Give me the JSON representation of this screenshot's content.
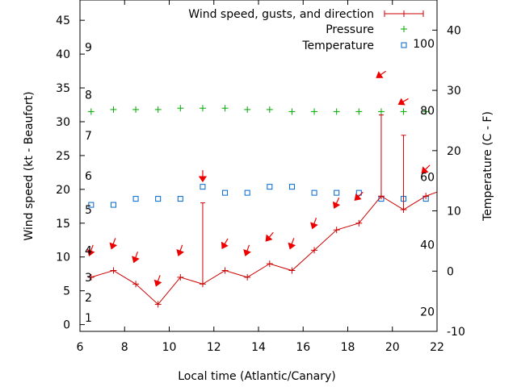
{
  "chart_data": {
    "type": "line",
    "xlabel": "Local time (Atlantic/Canary)",
    "ylabel": "Wind speed (kt - Beaufort)",
    "y2label": "Temperature (C - F)",
    "xlim": [
      6,
      22
    ],
    "ylim": [
      -1,
      48
    ],
    "y2lim": [
      -10,
      45
    ],
    "x_ticks": [
      6,
      8,
      10,
      12,
      14,
      16,
      18,
      20,
      22
    ],
    "y_ticks": [
      0,
      5,
      10,
      15,
      20,
      25,
      30,
      35,
      40,
      45
    ],
    "y2_ticks": [
      -10,
      0,
      10,
      20,
      30,
      40
    ],
    "beaufort_labels": [
      {
        "label": "1",
        "kt": 1
      },
      {
        "label": "2",
        "kt": 4
      },
      {
        "label": "3",
        "kt": 7
      },
      {
        "label": "4",
        "kt": 11
      },
      {
        "label": "5",
        "kt": 17
      },
      {
        "label": "6",
        "kt": 22
      },
      {
        "label": "7",
        "kt": 28
      },
      {
        "label": "8",
        "kt": 34
      },
      {
        "label": "9",
        "kt": 41
      }
    ],
    "fahrenheit_labels": [
      {
        "label": "20",
        "c": -6.7
      },
      {
        "label": "40",
        "c": 4.4
      },
      {
        "label": "60",
        "c": 15.6
      },
      {
        "label": "80",
        "c": 26.7
      },
      {
        "label": "100",
        "c": 37.8
      }
    ],
    "legend_position": "top-right",
    "legend": {
      "wind": "Wind speed, gusts, and direction",
      "pressure": "Pressure",
      "temperature": "Temperature"
    },
    "x": [
      6.5,
      7.5,
      8.5,
      9.5,
      10.5,
      11.5,
      12.5,
      13.5,
      14.5,
      15.5,
      16.5,
      17.5,
      18.5,
      19.5,
      20.5,
      21.5
    ],
    "wind_kt": [
      7,
      8,
      6,
      3,
      7,
      6,
      8,
      7,
      9,
      8,
      11,
      14,
      15,
      19,
      17,
      19
    ],
    "gust_kt": [
      null,
      null,
      null,
      null,
      null,
      18,
      null,
      null,
      null,
      null,
      null,
      null,
      null,
      31,
      28,
      null
    ],
    "wind_from_deg": [
      20,
      20,
      20,
      20,
      20,
      0,
      30,
      20,
      40,
      20,
      20,
      25,
      45,
      55,
      60,
      45
    ],
    "arrow_kt": [
      11,
      12,
      10,
      6.5,
      11,
      22,
      12,
      11,
      13,
      12,
      15,
      18,
      19,
      37,
      33,
      23
    ],
    "pressure_kt": [
      31.5,
      31.8,
      31.8,
      31.8,
      32,
      32,
      32,
      31.8,
      31.8,
      31.5,
      31.5,
      31.5,
      31.5,
      31.5,
      31.5,
      31.5
    ],
    "temperature_c": [
      11,
      11,
      12,
      12,
      12,
      14,
      13,
      13,
      14,
      14,
      13,
      13,
      13,
      12,
      12,
      12
    ]
  }
}
